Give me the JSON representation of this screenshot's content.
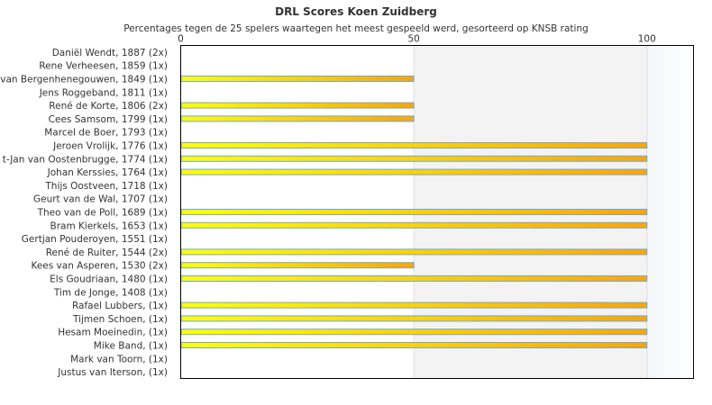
{
  "chart_data": {
    "type": "bar",
    "orientation": "horizontal",
    "title": "DRL Scores Koen Zuidberg",
    "subtitle": "Percentages tegen de 25 spelers waartegen het meest gespeeld werd, gesorteerd op KNSB rating",
    "xlim": [
      0,
      110
    ],
    "xticks": [
      0,
      50,
      100
    ],
    "xtick_labels": [
      "0",
      "50",
      "100"
    ],
    "categories": [
      "Daniël Wendt, 1887 (2x)",
      "Rene Verheesen, 1859 (1x)",
      "van Bergenhenegouwen, 1849 (1x)",
      "Jens Roggeband, 1811 (1x)",
      "René de Korte, 1806 (2x)",
      "Cees Samsom, 1799 (1x)",
      "Marcel de Boer, 1793 (1x)",
      "Jeroen Vrolijk, 1776 (1x)",
      "t-Jan van Oostenbrugge, 1774 (1x)",
      "Johan Kerssies, 1764 (1x)",
      "Thijs Oostveen, 1718 (1x)",
      "Geurt van de Wal, 1707 (1x)",
      "Theo van de Poll, 1689 (1x)",
      "Bram Kierkels, 1653 (1x)",
      "Gertjan Pouderoyen, 1551 (1x)",
      "René de Ruiter, 1544 (2x)",
      "Kees van Asperen, 1530 (2x)",
      "Els Goudriaan, 1480 (1x)",
      "Tim de Jonge, 1408 (1x)",
      "Rafael Lubbers,  (1x)",
      "Tijmen Schoen,  (1x)",
      "Hesam Moeinedin,  (1x)",
      "Mike Band,  (1x)",
      "Mark van Toorn,  (1x)",
      "Justus van Iterson,  (1x)"
    ],
    "values": [
      0,
      0,
      50,
      0,
      50,
      50,
      0,
      100,
      100,
      100,
      0,
      0,
      100,
      100,
      0,
      100,
      50,
      100,
      0,
      100,
      100,
      100,
      100,
      0,
      0
    ],
    "bar_gradient": [
      "#ffff00",
      "#ffa500"
    ],
    "bar_border": "#6fa8dc",
    "grid": true
  }
}
